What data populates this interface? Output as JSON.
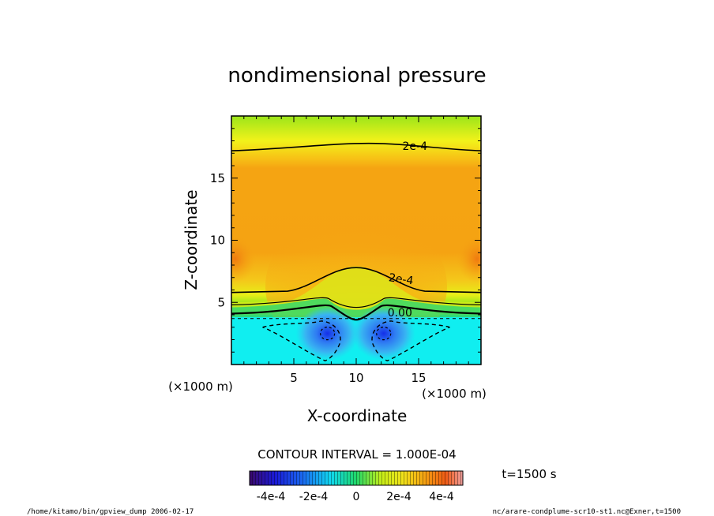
{
  "chart_data": {
    "type": "contour",
    "title": "nondimensional pressure",
    "xlabel": "X-coordinate",
    "ylabel": "Z-coordinate",
    "x_unit": "(×1000 m)",
    "y_unit": "(×1000 m)",
    "xlim": [
      0,
      20
    ],
    "ylim": [
      0,
      20
    ],
    "x_ticks": [
      5,
      10,
      15
    ],
    "y_ticks": [
      5,
      10,
      15
    ],
    "contour_labels": [
      "2e-4",
      "2e-4",
      "0.00"
    ],
    "contour_interval_text": "CONTOUR INTERVAL = 1.000E-04",
    "time_label": "t=1500 s",
    "colorbar": {
      "range": [
        -0.0005,
        0.0005
      ],
      "tick_labels": [
        "-4e-4",
        "-2e-4",
        "0",
        "2e-4",
        "4e-4"
      ],
      "tick_values": [
        -0.0004,
        -0.0002,
        0,
        0.0002,
        0.0004
      ]
    },
    "field_regions": [
      {
        "name": "top-band",
        "value": 0.00015
      },
      {
        "name": "upper-interior",
        "value": 0.00034
      },
      {
        "name": "transition-layer",
        "value": 0.0001
      },
      {
        "name": "lower-layer",
        "value": -8e-05
      },
      {
        "name": "vortex-left",
        "x": 7.7,
        "z": 2.5,
        "value": -0.00035
      },
      {
        "name": "vortex-right",
        "x": 12.2,
        "z": 2.5,
        "value": -0.00035
      }
    ]
  },
  "footer": {
    "left": "/home/kitamo/bin/gpview_dump  2006-02-17",
    "right": "nc/arare-condplume-scr10-st1.nc@Exner,t=1500"
  }
}
